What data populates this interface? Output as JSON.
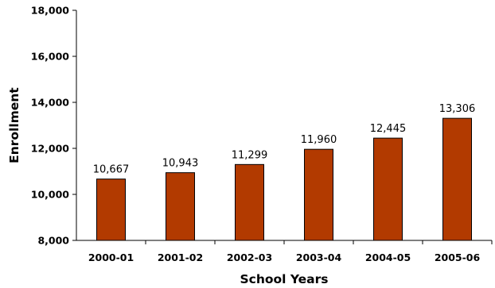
{
  "chart_data": {
    "type": "bar",
    "categories": [
      "2000-01",
      "2001-02",
      "2002-03",
      "2003-04",
      "2004-05",
      "2005-06"
    ],
    "values": [
      10667,
      10943,
      11299,
      11960,
      12445,
      13306
    ],
    "value_labels": [
      "10,667",
      "10,943",
      "11,299",
      "11,960",
      "12,445",
      "13,306"
    ],
    "title": "",
    "xlabel": "School Years",
    "ylabel": "Enrollment",
    "ylim": [
      8000,
      18000
    ],
    "yticks": [
      8000,
      10000,
      12000,
      14000,
      16000,
      18000
    ],
    "ytick_labels": [
      "8,000",
      "10,000",
      "12,000",
      "14,000",
      "16,000",
      "18,000"
    ],
    "grid": false,
    "legend": "none",
    "bar_color": "#b23a00",
    "bar_edge_color": "#000000"
  }
}
